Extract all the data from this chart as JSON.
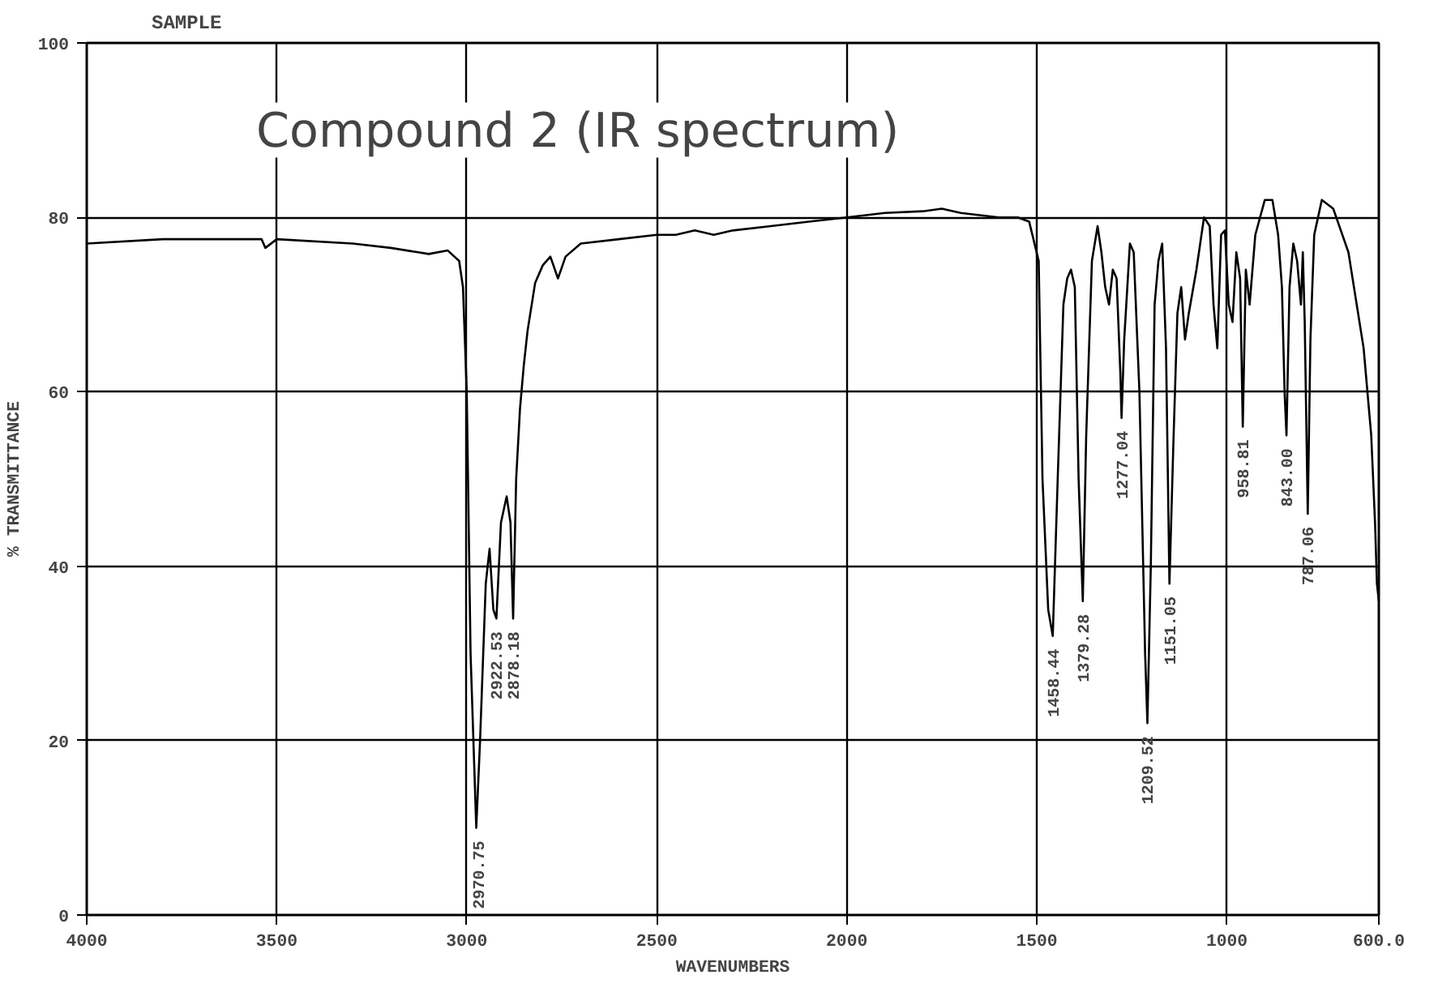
{
  "chart_data": {
    "type": "line",
    "title": "Compound 2 (IR spectrum)",
    "subtitle": "SAMPLE",
    "xlabel": "WAVENUMBERS",
    "ylabel": "% TRANSMITTANCE",
    "xlim": [
      4000,
      600
    ],
    "ylim": [
      0,
      100
    ],
    "xticks": [
      4000,
      3500,
      3000,
      2500,
      2000,
      1500,
      1000,
      {
        "value": 600,
        "label": "600.0"
      }
    ],
    "yticks": [
      0,
      20,
      40,
      60,
      80,
      100
    ],
    "grid": true,
    "line_style": "solid",
    "series": [
      {
        "color": "#000000",
        "x": [
          4000,
          3800,
          3600,
          3540,
          3530,
          3500,
          3300,
          3200,
          3100,
          3050,
          3020,
          3010,
          3000,
          2990,
          2975,
          2965,
          2950,
          2940,
          2930,
          2922,
          2910,
          2895,
          2885,
          2878,
          2870,
          2860,
          2850,
          2840,
          2820,
          2800,
          2780,
          2760,
          2740,
          2700,
          2600,
          2500,
          2450,
          2400,
          2350,
          2300,
          2200,
          2100,
          2000,
          1900,
          1800,
          1750,
          1700,
          1600,
          1550,
          1520,
          1495,
          1485,
          1470,
          1458,
          1445,
          1430,
          1420,
          1410,
          1400,
          1390,
          1379,
          1370,
          1355,
          1340,
          1330,
          1320,
          1310,
          1300,
          1290,
          1280,
          1277,
          1270,
          1255,
          1245,
          1230,
          1215,
          1209,
          1200,
          1190,
          1180,
          1170,
          1160,
          1151,
          1140,
          1130,
          1120,
          1110,
          1100,
          1080,
          1060,
          1045,
          1035,
          1025,
          1015,
          1005,
          995,
          985,
          975,
          965,
          958,
          950,
          940,
          925,
          900,
          880,
          865,
          855,
          848,
          843,
          835,
          825,
          815,
          805,
          800,
          795,
          787,
          780,
          770,
          750,
          720,
          680,
          640,
          620,
          610,
          605,
          600
        ],
        "values": [
          77,
          77.5,
          77.5,
          77.5,
          76.5,
          77.5,
          77,
          76.5,
          75.8,
          76.2,
          75,
          72,
          60,
          30,
          10,
          20,
          38,
          42,
          35,
          34,
          45,
          48,
          45,
          34,
          50,
          58,
          63,
          67,
          72.5,
          74.5,
          75.5,
          73,
          75.5,
          77,
          77.5,
          78,
          78,
          78.5,
          78,
          78.5,
          79,
          79.5,
          80,
          80.5,
          80.7,
          81,
          80.5,
          80,
          80,
          79.5,
          75,
          50,
          35,
          32,
          50,
          70,
          73,
          74,
          72,
          50,
          36,
          55,
          75,
          79,
          76,
          72,
          70,
          74,
          73,
          62,
          57,
          66,
          77,
          76,
          60,
          30,
          22,
          40,
          70,
          75,
          77,
          65,
          38,
          55,
          69,
          72,
          66,
          69,
          74,
          80,
          79,
          70,
          65,
          78,
          78.5,
          70,
          68,
          76,
          73,
          56,
          74,
          70,
          78,
          82,
          82,
          78,
          72,
          60,
          55,
          72,
          77,
          75,
          70,
          76,
          68,
          46,
          66,
          78,
          82,
          81,
          76,
          65,
          55,
          45,
          38,
          36
        ]
      }
    ],
    "annotations": [
      {
        "text": "2970.75",
        "x": 2970.75,
        "y": 10
      },
      {
        "text": "2922.53",
        "x": 2922.53,
        "y": 34
      },
      {
        "text": "2878.18",
        "x": 2878.18,
        "y": 34
      },
      {
        "text": "1458.44",
        "x": 1458.44,
        "y": 32
      },
      {
        "text": "1379.28",
        "x": 1379.28,
        "y": 36
      },
      {
        "text": "1277.04",
        "x": 1277.04,
        "y": 57
      },
      {
        "text": "1209.52",
        "x": 1209.52,
        "y": 22
      },
      {
        "text": "1151.05",
        "x": 1151.05,
        "y": 38
      },
      {
        "text": "958.81",
        "x": 958.81,
        "y": 56
      },
      {
        "text": "843.00",
        "x": 843.0,
        "y": 55
      },
      {
        "text": "787.06",
        "x": 787.06,
        "y": 46
      }
    ]
  }
}
